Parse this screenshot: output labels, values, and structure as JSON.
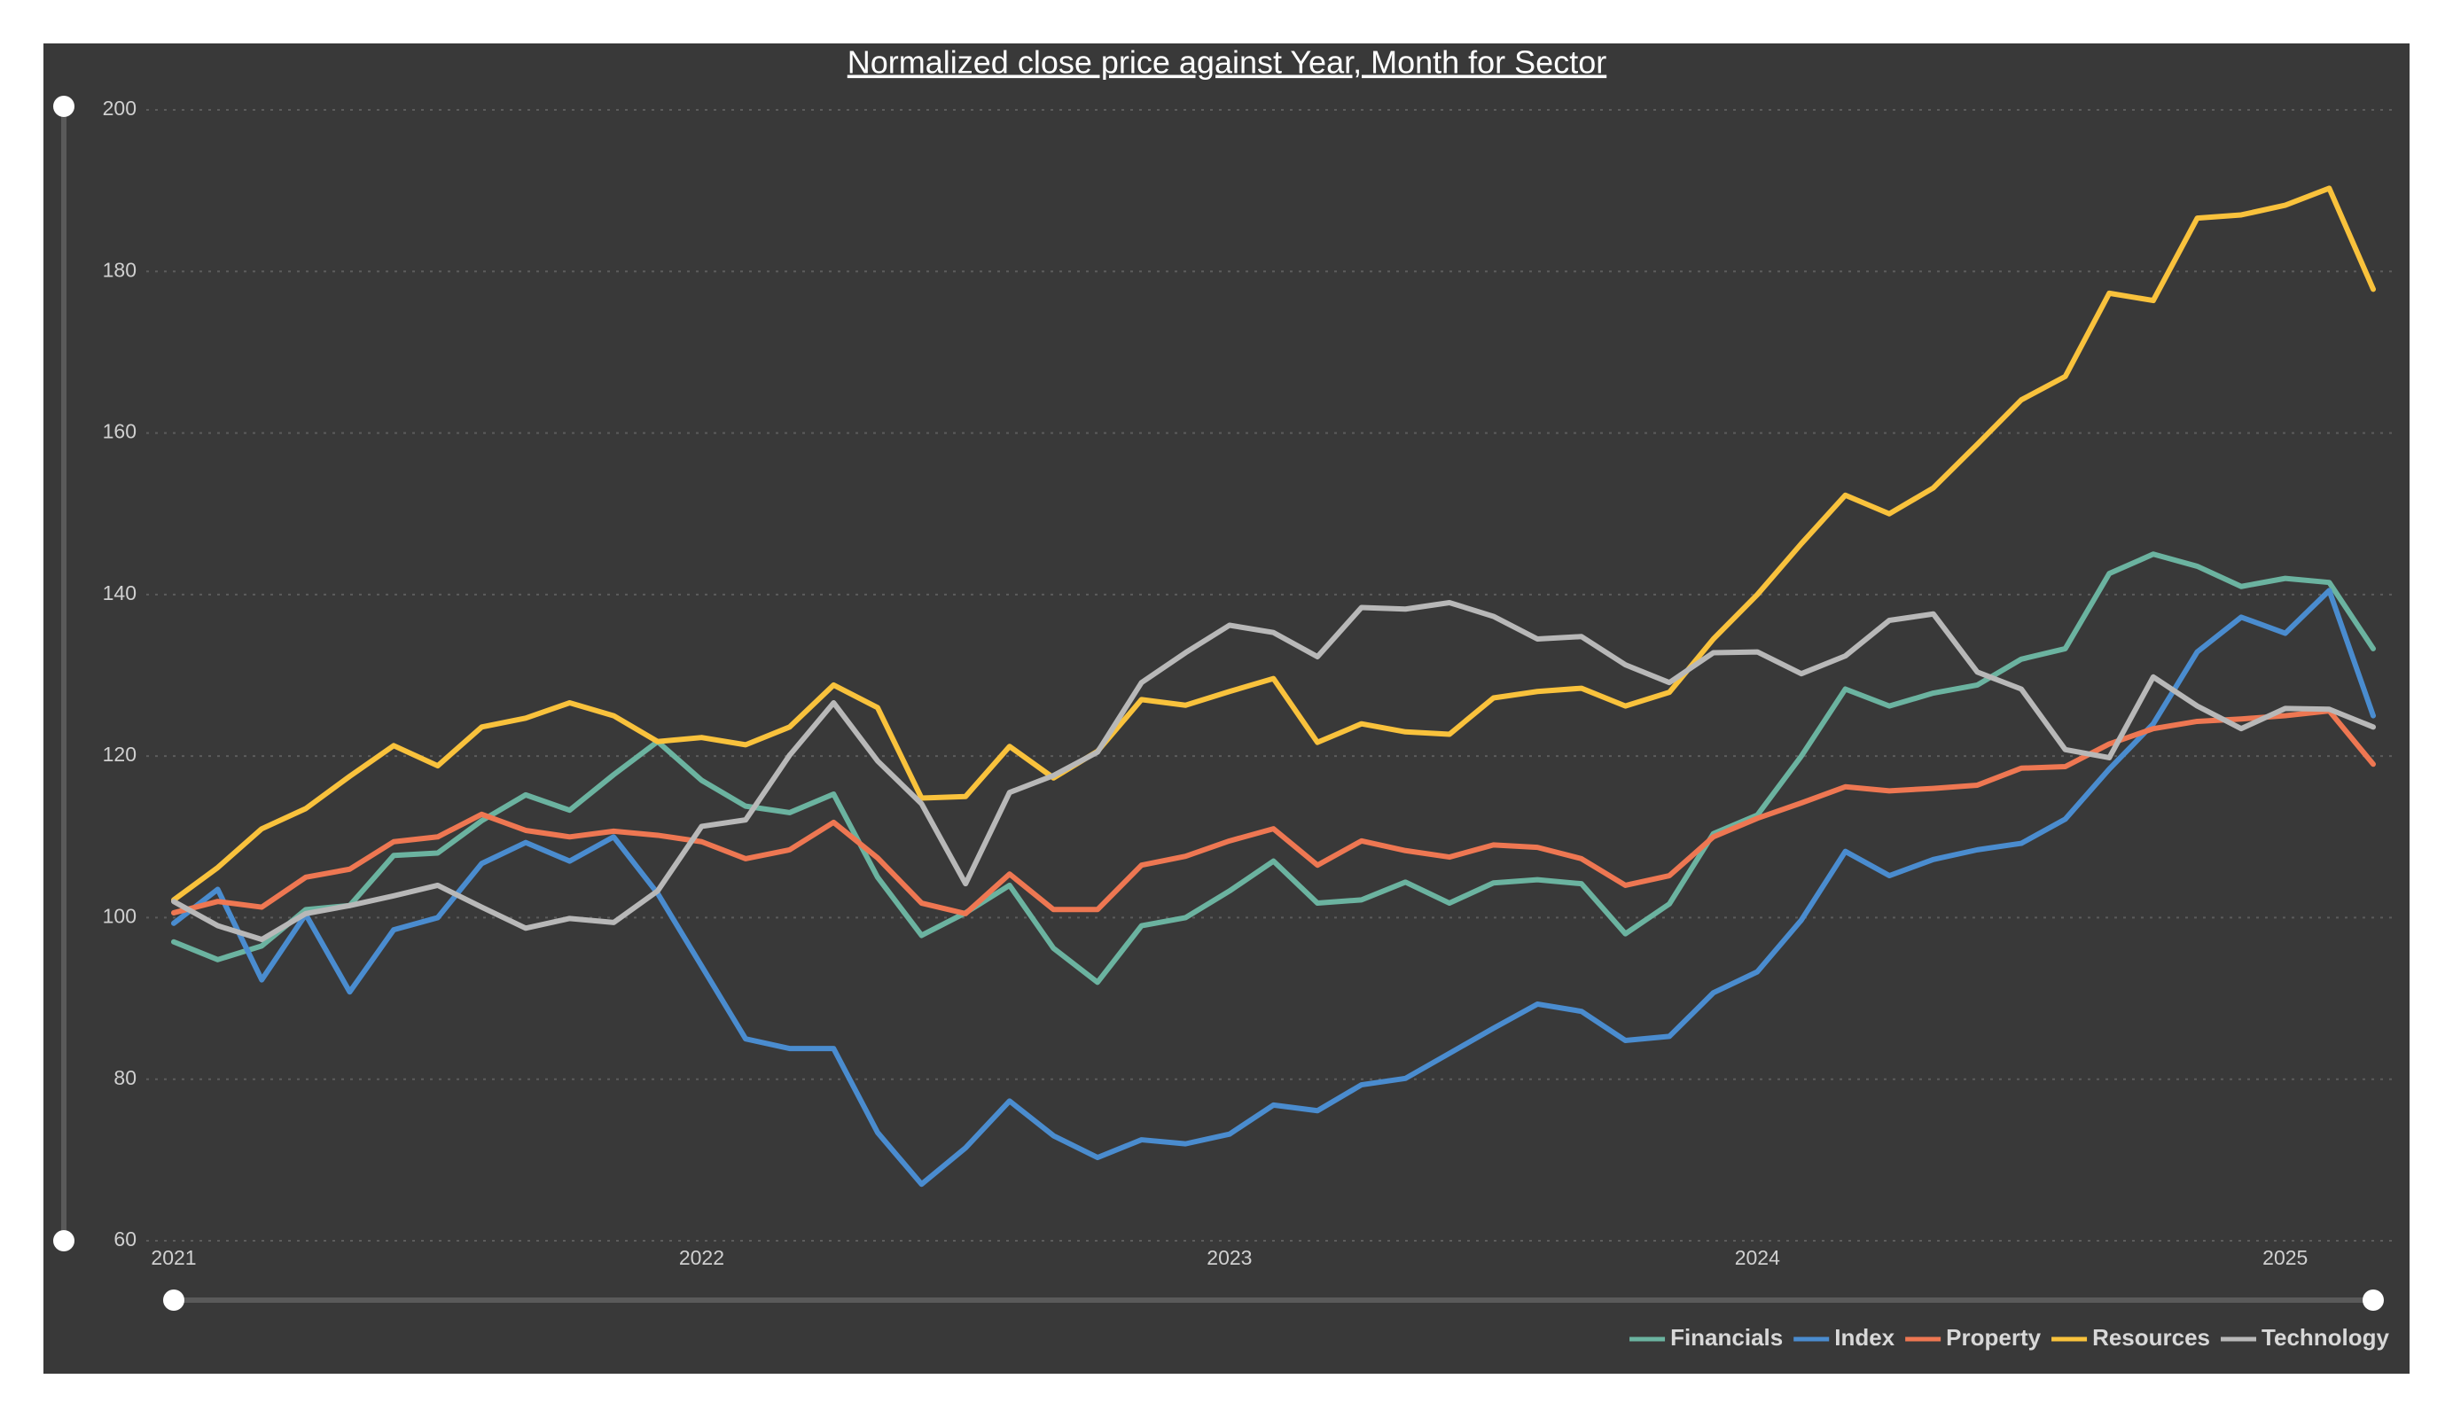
{
  "chart_data": {
    "type": "line",
    "title": "Normalized close price against Year, Month for Sector",
    "categories": [
      "2021",
      null,
      null,
      null,
      null,
      null,
      null,
      null,
      null,
      null,
      null,
      null,
      "2022",
      null,
      null,
      null,
      null,
      null,
      null,
      null,
      null,
      null,
      null,
      null,
      "2023",
      null,
      null,
      null,
      null,
      null,
      null,
      null,
      null,
      null,
      null,
      null,
      "2024",
      null,
      null,
      null,
      null,
      null,
      null,
      null,
      null,
      null,
      null,
      null,
      "2025",
      null,
      null
    ],
    "series": [
      {
        "name": "Financials",
        "color": "#6bb3a0",
        "values": [
          97,
          94.8,
          96.5,
          101,
          101.5,
          107.7,
          108,
          112,
          115.2,
          113.3,
          117.7,
          121.8,
          117,
          113.8,
          113,
          115.3,
          105,
          97.8,
          100.6,
          104,
          96.2,
          92,
          99,
          100,
          103.3,
          107,
          101.8,
          102.2,
          104.4,
          101.8,
          104.3,
          104.7,
          104.2,
          98,
          101.7,
          110.4,
          112.7,
          120,
          128.3,
          126.2,
          127.8,
          128.8,
          132,
          133.3,
          142.6,
          145,
          143.5,
          141,
          142,
          141.5,
          133.3
        ]
      },
      {
        "name": "Index",
        "color": "#4a8ccf",
        "values": [
          99.3,
          103.5,
          92.3,
          100.4,
          90.8,
          98.5,
          100,
          106.7,
          109.3,
          107,
          110,
          103,
          94,
          85,
          83.8,
          83.8,
          73.4,
          67,
          71.5,
          77.3,
          73,
          70.3,
          72.5,
          72,
          73.2,
          76.8,
          76.1,
          79.3,
          80.1,
          83.2,
          86.3,
          89.3,
          88.4,
          84.8,
          85.3,
          90.7,
          93.3,
          99.7,
          108.2,
          105.2,
          107.2,
          108.4,
          109.2,
          112.2,
          118.4,
          124,
          132.9,
          137.2,
          135.2,
          140.5,
          125
        ]
      },
      {
        "name": "Property",
        "color": "#ee7752",
        "values": [
          100.6,
          102,
          101.3,
          105,
          106,
          109.4,
          110,
          112.8,
          110.8,
          110,
          110.7,
          110.2,
          109.4,
          107.3,
          108.4,
          111.8,
          107.4,
          101.8,
          100.5,
          105.4,
          101,
          101,
          106.5,
          107.6,
          109.5,
          111,
          106.5,
          109.5,
          108.3,
          107.5,
          109,
          108.7,
          107.3,
          104,
          105.2,
          110,
          112.3,
          114.2,
          116.2,
          115.7,
          116,
          116.4,
          118.5,
          118.7,
          121.5,
          123.4,
          124.3,
          124.6,
          125,
          125.6,
          119
        ]
      },
      {
        "name": "Resources",
        "color": "#f9c23c",
        "values": [
          102.2,
          106.2,
          111,
          113.5,
          117.5,
          121.3,
          118.8,
          123.6,
          124.7,
          126.6,
          125,
          121.8,
          122.3,
          121.4,
          123.6,
          128.8,
          126,
          114.8,
          115,
          121.2,
          117.3,
          120.6,
          127,
          126.3,
          128,
          129.6,
          121.7,
          124,
          123,
          122.7,
          127.2,
          128,
          128.4,
          126.2,
          127.9,
          134.5,
          140,
          146.3,
          152.3,
          150,
          153.2,
          158.6,
          164.1,
          167,
          177.3,
          176.4,
          186.6,
          187,
          188.2,
          190.3,
          177.8
        ]
      },
      {
        "name": "Technology",
        "color": "#b8b8b8",
        "values": [
          102,
          99,
          97.3,
          100.5,
          101.5,
          102.7,
          104,
          101.3,
          98.7,
          99.9,
          99.4,
          103.3,
          111.3,
          112.1,
          120.1,
          126.6,
          119.4,
          114.1,
          104.2,
          115.5,
          117.6,
          120.5,
          129.1,
          132.8,
          136.2,
          135.3,
          132.3,
          138.4,
          138.2,
          139,
          137.3,
          134.5,
          134.8,
          131.3,
          129.1,
          132.8,
          132.9,
          130.2,
          132.4,
          136.8,
          137.6,
          130.4,
          128.3,
          120.8,
          119.8,
          129.8,
          126.2,
          123.4,
          125.9,
          125.8,
          123.6
        ]
      }
    ],
    "ylim": [
      60,
      200
    ],
    "yticks": [
      60,
      80,
      100,
      120,
      140,
      160,
      180,
      200
    ],
    "grid": true,
    "legend": "bottom-right"
  }
}
